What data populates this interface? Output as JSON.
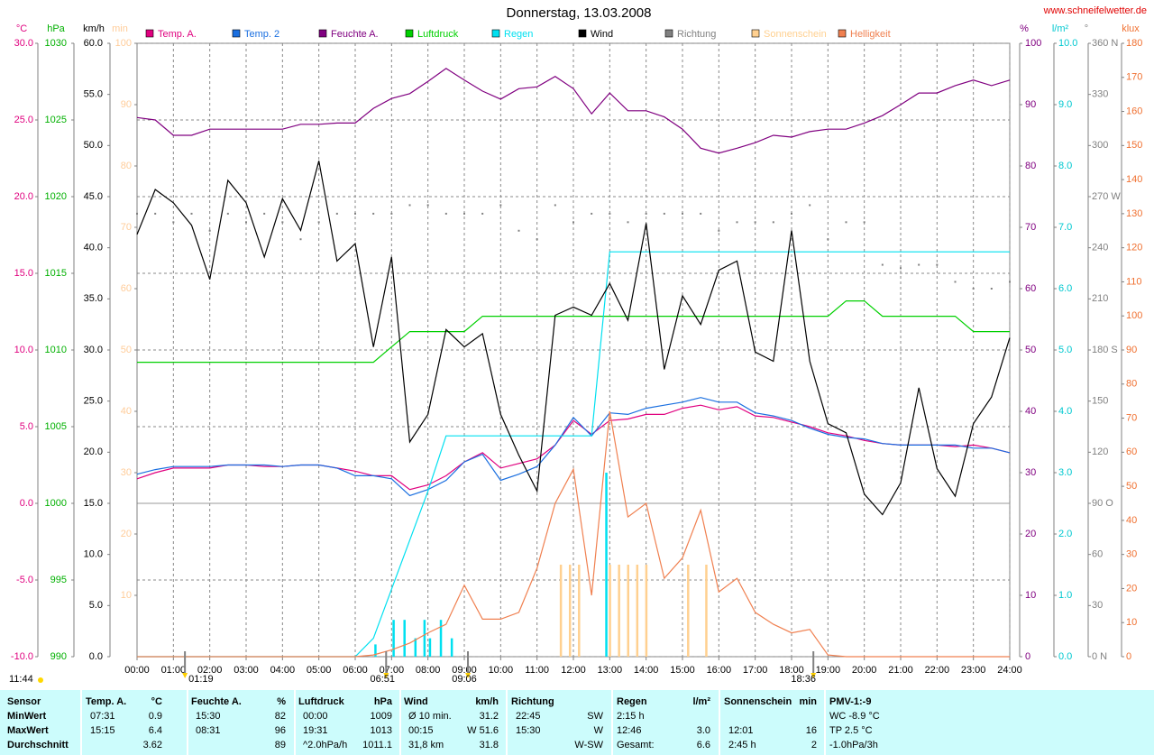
{
  "chart_data": {
    "type": "line",
    "title": "Donnerstag, 13.03.2008",
    "source": "www.schneifelwetter.de",
    "grid": true,
    "x": [
      0,
      0.5,
      1,
      1.5,
      2,
      2.5,
      3,
      3.5,
      4,
      4.5,
      5,
      5.5,
      6,
      6.5,
      7,
      7.5,
      8,
      8.5,
      9,
      9.5,
      10,
      10.5,
      11,
      11.5,
      12,
      12.5,
      13,
      13.5,
      14,
      14.5,
      15,
      15.5,
      16,
      16.5,
      17,
      17.5,
      18,
      18.5,
      19,
      19.5,
      20,
      20.5,
      21,
      21.5,
      22,
      22.5,
      23,
      23.5,
      24
    ],
    "xlim": [
      0,
      24
    ],
    "xticks": [
      {
        "value": 0,
        "label": "00:00"
      },
      {
        "value": 1,
        "label": "01:00"
      },
      {
        "value": 2,
        "label": "02:00"
      },
      {
        "value": 3,
        "label": "03:00"
      },
      {
        "value": 4,
        "label": "04:00"
      },
      {
        "value": 5,
        "label": "05:00"
      },
      {
        "value": 6,
        "label": "06:00"
      },
      {
        "value": 7,
        "label": "07:00"
      },
      {
        "value": 8,
        "label": "08:00"
      },
      {
        "value": 9,
        "label": "09:00"
      },
      {
        "value": 10,
        "label": "10:00"
      },
      {
        "value": 11,
        "label": "11:00"
      },
      {
        "value": 12,
        "label": "12:00"
      },
      {
        "value": 13,
        "label": "13:00"
      },
      {
        "value": 14,
        "label": "14:00"
      },
      {
        "value": 15,
        "label": "15:00"
      },
      {
        "value": 16,
        "label": "16:00"
      },
      {
        "value": 17,
        "label": "17:00"
      },
      {
        "value": 18,
        "label": "18:00"
      },
      {
        "value": 19,
        "label": "19:00"
      },
      {
        "value": 20,
        "label": "20:00"
      },
      {
        "value": 21,
        "label": "21:00"
      },
      {
        "value": 22,
        "label": "22:00"
      },
      {
        "value": 23,
        "label": "23:00"
      },
      {
        "value": 24,
        "label": "24:00"
      }
    ],
    "axes": [
      {
        "label": "°C",
        "color": "#e0007f",
        "ylim": [
          -10,
          30
        ],
        "yticks": [
          {
            "value": -10,
            "label": "-10.0"
          },
          {
            "value": -5,
            "label": "-5.0"
          },
          {
            "value": 0,
            "label": "0.0"
          },
          {
            "value": 5,
            "label": "5.0"
          },
          {
            "value": 10,
            "label": "10.0"
          },
          {
            "value": 15,
            "label": "15.0"
          },
          {
            "value": 20,
            "label": "20.0"
          },
          {
            "value": 25,
            "label": "25.0"
          },
          {
            "value": 30,
            "label": "30.0"
          }
        ]
      },
      {
        "label": "hPa",
        "color": "#00b000",
        "ylim": [
          990,
          1030
        ],
        "yticks": [
          990,
          995,
          1000,
          1005,
          1010,
          1015,
          1020,
          1025,
          1030
        ]
      },
      {
        "label": "km/h",
        "color": "#000000",
        "ylim": [
          0,
          60
        ],
        "yticks": [
          {
            "value": 0,
            "label": "0.0"
          },
          {
            "value": 5,
            "label": "5.0"
          },
          {
            "value": 10,
            "label": "10.0"
          },
          {
            "value": 15,
            "label": "15.0"
          },
          {
            "value": 20,
            "label": "20.0"
          },
          {
            "value": 25,
            "label": "25.0"
          },
          {
            "value": 30,
            "label": "30.0"
          },
          {
            "value": 35,
            "label": "35.0"
          },
          {
            "value": 40,
            "label": "40.0"
          },
          {
            "value": 45,
            "label": "45.0"
          },
          {
            "value": 50,
            "label": "50.0"
          },
          {
            "value": 55,
            "label": "55.0"
          },
          {
            "value": 60,
            "label": "60.0"
          }
        ]
      },
      {
        "label": "min",
        "color": "#ffcc99",
        "ylim": [
          0,
          100
        ],
        "yticks": [
          10,
          20,
          30,
          40,
          50,
          60,
          70,
          80,
          90,
          100
        ]
      },
      {
        "label": "%",
        "color": "#800080",
        "ylim": [
          0,
          100
        ],
        "yticks": [
          0,
          10,
          20,
          30,
          40,
          50,
          60,
          70,
          80,
          90,
          100
        ]
      },
      {
        "label": "l/m²",
        "color": "#00c8d0",
        "ylim": [
          0,
          10
        ],
        "yticks": [
          {
            "value": 0,
            "label": "0.0"
          },
          {
            "value": 1,
            "label": "1.0"
          },
          {
            "value": 2,
            "label": "2.0"
          },
          {
            "value": 3,
            "label": "3.0"
          },
          {
            "value": 4,
            "label": "4.0"
          },
          {
            "value": 5,
            "label": "5.0"
          },
          {
            "value": 6,
            "label": "6.0"
          },
          {
            "value": 7,
            "label": "7.0"
          },
          {
            "value": 8,
            "label": "8.0"
          },
          {
            "value": 9,
            "label": "9.0"
          },
          {
            "value": 10,
            "label": "10.0"
          }
        ]
      },
      {
        "label": "°",
        "color": "#808080",
        "ylim": [
          0,
          360
        ],
        "yticks": [
          {
            "value": 0,
            "label": "0 N"
          },
          30,
          60,
          {
            "value": 90,
            "label": "90 O"
          },
          120,
          150,
          {
            "value": 180,
            "label": "180 S"
          },
          210,
          240,
          {
            "value": 270,
            "label": "270 W"
          },
          300,
          330,
          {
            "value": 360,
            "label": "360 N"
          }
        ]
      },
      {
        "label": "klux",
        "color": "#f07030",
        "ylim": [
          0,
          180
        ],
        "yticks": [
          0,
          10,
          20,
          30,
          40,
          50,
          60,
          70,
          80,
          90,
          100,
          110,
          120,
          130,
          140,
          150,
          160,
          170,
          180
        ]
      }
    ],
    "series": [
      {
        "name": "Temp. A.",
        "color": "#e0007f",
        "axis": 0,
        "style": "line",
        "values": [
          1.6,
          2.0,
          2.3,
          2.3,
          2.3,
          2.5,
          2.5,
          2.4,
          2.4,
          2.5,
          2.5,
          2.3,
          2.1,
          1.8,
          1.8,
          0.9,
          1.2,
          1.8,
          2.7,
          3.3,
          2.3,
          2.6,
          2.9,
          3.8,
          5.4,
          4.5,
          5.4,
          5.5,
          5.8,
          5.8,
          6.2,
          6.4,
          6.1,
          6.3,
          5.7,
          5.6,
          5.3,
          5.0,
          4.6,
          4.4,
          4.1,
          3.9,
          3.8,
          3.8,
          3.8,
          3.7,
          3.8,
          3.6,
          3.3
        ]
      },
      {
        "name": "Temp. 2",
        "color": "#1a6fe0",
        "axis": 0,
        "style": "line",
        "values": [
          1.9,
          2.2,
          2.4,
          2.4,
          2.4,
          2.5,
          2.5,
          2.5,
          2.4,
          2.5,
          2.5,
          2.3,
          1.8,
          1.8,
          1.6,
          0.5,
          0.9,
          1.5,
          2.7,
          3.2,
          1.5,
          1.9,
          2.4,
          3.8,
          5.6,
          4.4,
          5.9,
          5.8,
          6.2,
          6.4,
          6.6,
          6.9,
          6.6,
          6.6,
          5.9,
          5.7,
          5.4,
          4.9,
          4.5,
          4.3,
          4.2,
          3.9,
          3.8,
          3.8,
          3.8,
          3.8,
          3.6,
          3.6,
          3.3
        ]
      },
      {
        "name": "Feuchte A.",
        "color": "#800080",
        "axis": 4,
        "style": "line",
        "values": [
          87.9,
          87.5,
          85,
          85,
          86,
          86,
          86,
          86,
          86,
          86.8,
          86.8,
          87,
          87,
          89.4,
          91,
          91.8,
          93.8,
          95.9,
          94,
          92.2,
          90.9,
          92.6,
          92.9,
          94.6,
          92.6,
          88.5,
          91.9,
          89,
          89,
          88,
          86,
          82.9,
          82.1,
          82.9,
          83.8,
          85,
          84.7,
          85.6,
          86,
          86,
          87,
          88.2,
          90,
          91.9,
          91.9,
          93.1,
          94,
          93.1,
          94
        ]
      },
      {
        "name": "Luftdruck",
        "color": "#00d000",
        "axis": 1,
        "style": "line",
        "values": [
          1009.2,
          1009.2,
          1009.2,
          1009.2,
          1009.2,
          1009.2,
          1009.2,
          1009.2,
          1009.2,
          1009.2,
          1009.2,
          1009.2,
          1009.2,
          1009.2,
          1010.2,
          1011.2,
          1011.2,
          1011.2,
          1011.2,
          1012.2,
          1012.2,
          1012.2,
          1012.2,
          1012.2,
          1012.2,
          1012.2,
          1012.2,
          1012.2,
          1012.2,
          1012.2,
          1012.2,
          1012.2,
          1012.2,
          1012.2,
          1012.2,
          1012.2,
          1012.2,
          1012.2,
          1012.2,
          1013.2,
          1013.2,
          1012.2,
          1012.2,
          1012.2,
          1012.2,
          1012.2,
          1011.2,
          1011.2,
          1011.2
        ]
      },
      {
        "name": "Regen",
        "color": "#00e0f0",
        "axis": 5,
        "style": "line",
        "values": [
          0,
          0,
          0,
          0,
          0,
          0,
          0,
          0,
          0,
          0,
          0,
          0,
          0,
          0.3,
          1.1,
          1.9,
          2.7,
          3.6,
          3.6,
          3.6,
          3.6,
          3.6,
          3.6,
          3.6,
          3.6,
          3.6,
          6.6,
          6.6,
          6.6,
          6.6,
          6.6,
          6.6,
          6.6,
          6.6,
          6.6,
          6.6,
          6.6,
          6.6,
          6.6,
          6.6,
          6.6,
          6.6,
          6.6,
          6.6,
          6.6,
          6.6,
          6.6,
          6.6,
          6.6
        ]
      },
      {
        "name": "Wind",
        "color": "#000000",
        "axis": 2,
        "style": "line",
        "values": [
          41.3,
          45.7,
          44.4,
          42.2,
          36.9,
          46.6,
          44.4,
          39.1,
          44.8,
          41.7,
          48.5,
          38.7,
          40.4,
          30.3,
          39.1,
          21.0,
          23.7,
          32.0,
          30.3,
          31.6,
          23.7,
          19.7,
          16.2,
          33.4,
          34.2,
          33.4,
          36.5,
          32.9,
          42.4,
          28.1,
          35.3,
          32.5,
          37.8,
          38.7,
          29.8,
          28.9,
          41.7,
          28.9,
          22.8,
          21.9,
          15.9,
          13.9,
          17.0,
          26.3,
          18.4,
          15.7,
          22.8,
          25.4,
          31.2
        ]
      },
      {
        "name": "Richtung",
        "color": "#808080",
        "axis": 6,
        "style": "dots",
        "values": [
          260,
          260,
          255,
          260,
          250,
          260,
          255,
          260,
          255,
          245,
          255,
          260,
          260,
          260,
          260,
          265,
          265,
          260,
          260,
          260,
          265,
          250,
          245,
          265,
          255,
          260,
          260,
          255,
          260,
          260,
          260,
          260,
          250,
          255,
          255,
          255,
          260,
          265,
          245,
          255,
          255,
          230,
          228,
          230,
          230,
          220,
          216,
          216,
          220
        ]
      },
      {
        "name": "Sonnenschein",
        "color": "#ffd090",
        "axis": 3,
        "style": "bars",
        "x": [
          11.65,
          11.9,
          12.15,
          13.0,
          13.25,
          13.5,
          13.75,
          14.0,
          15.15,
          15.65
        ],
        "values": [
          15,
          15,
          15,
          15,
          15,
          15,
          15,
          15,
          15,
          15
        ]
      },
      {
        "name": "Helligkeit",
        "color": "#f08050",
        "axis": 7,
        "style": "line",
        "values": [
          0,
          0,
          0,
          0,
          0,
          0,
          0,
          0,
          0,
          0,
          0,
          0,
          0,
          0.5,
          2,
          4,
          7,
          9.5,
          21,
          11,
          11,
          13,
          26,
          45,
          55,
          18,
          72,
          41,
          45,
          23,
          29,
          43,
          19,
          23,
          13,
          9.5,
          7,
          8,
          0.5,
          0,
          0,
          0,
          0,
          0,
          0,
          0,
          0,
          0,
          0
        ]
      },
      {
        "color": "#00e0f0",
        "axis": 5,
        "style": "bars",
        "x": [
          6.55,
          7.05,
          7.35,
          7.65,
          7.9,
          8.05,
          8.35,
          8.65,
          12.9
        ],
        "values": [
          0.2,
          0.6,
          0.6,
          0.3,
          0.6,
          0.3,
          0.6,
          0.3,
          3.0
        ]
      }
    ],
    "annotations": [
      {
        "label": "11:44"
      },
      {
        "label": "01:19",
        "x": 1.317
      },
      {
        "label": "06:51",
        "x": 6.85
      },
      {
        "label": "09:06",
        "x": 9.1
      },
      {
        "label": "18:36",
        "x": 18.6
      }
    ]
  },
  "table": {
    "header": [
      "Sensor",
      "Temp. A.",
      "°C",
      "Feuchte A.",
      "%",
      "Luftdruck",
      "hPa",
      "Wind",
      "km/h",
      "Richtung",
      null,
      "Regen",
      "l/m²",
      "Sonnenschein",
      "min",
      "PMV-1:-9"
    ],
    "rows": [
      [
        "MinWert",
        "07:31",
        "0.9",
        "15:30",
        "82",
        "00:00",
        "1009",
        "Ø 10 min.",
        "31.2",
        "22:45",
        "SW",
        "2:15 h",
        null,
        null,
        null,
        "WC -8.9 °C"
      ],
      [
        "MaxWert",
        "15:15",
        "6.4",
        "08:31",
        "96",
        "19:31",
        "1013",
        "00:15",
        "W 51.6",
        "15:30",
        "W",
        "12:46",
        "3.0",
        "12:01",
        "16",
        "TP 2.5 °C"
      ],
      [
        "Durchschnitt",
        null,
        "3.62",
        null,
        "89",
        "^2.0hPa/h",
        "1011.1",
        "31,8 km",
        "31.8",
        null,
        "W-SW",
        "Gesamt:",
        "6.6",
        "2:45 h",
        "2",
        "-1.0hPa/3h"
      ]
    ]
  }
}
